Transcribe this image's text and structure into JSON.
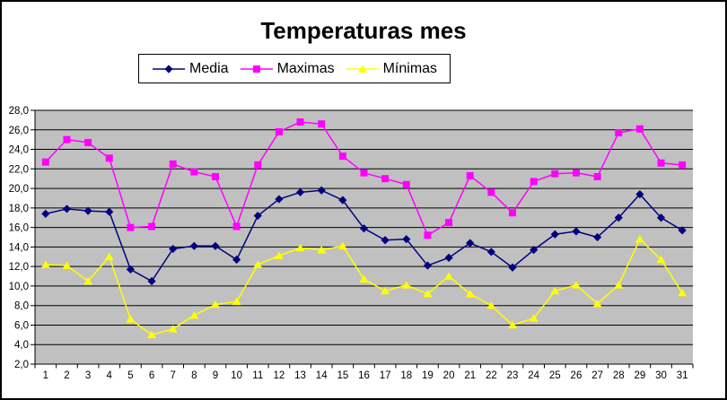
{
  "chart": {
    "title": "Temperaturas mes",
    "colors": {
      "media": "#000080",
      "maximas": "#FF00FF",
      "minimas": "#FFFF00",
      "plot_background": "#C0C0C0",
      "gridlines": "#000000",
      "chart_background": "#FFFFFF",
      "border": "#000000",
      "text": "#000000"
    }
  },
  "chart_data": {
    "type": "line",
    "title": "Temperaturas mes",
    "x": [
      1,
      2,
      3,
      4,
      5,
      6,
      7,
      8,
      9,
      10,
      11,
      12,
      13,
      14,
      15,
      16,
      17,
      18,
      19,
      20,
      21,
      22,
      23,
      24,
      25,
      26,
      27,
      28,
      29,
      30,
      31
    ],
    "series": [
      {
        "name": "Media",
        "color": "#000080",
        "marker": "diamond",
        "values": [
          17.4,
          17.9,
          17.7,
          17.6,
          11.7,
          10.5,
          13.8,
          14.1,
          14.1,
          12.7,
          17.2,
          18.9,
          19.6,
          19.8,
          18.8,
          15.9,
          14.7,
          14.8,
          12.1,
          12.9,
          14.4,
          13.5,
          11.9,
          13.7,
          15.3,
          15.6,
          15.0,
          17.0,
          19.4,
          17.0,
          15.7
        ]
      },
      {
        "name": "Maximas",
        "color": "#FF00FF",
        "marker": "square",
        "values": [
          22.7,
          25.0,
          24.7,
          23.1,
          16.0,
          16.1,
          22.5,
          21.7,
          21.2,
          16.1,
          22.4,
          25.8,
          26.8,
          26.6,
          23.3,
          21.6,
          21.0,
          20.4,
          15.2,
          16.5,
          21.3,
          19.6,
          17.5,
          20.7,
          21.5,
          21.6,
          21.2,
          25.7,
          26.1,
          22.6,
          22.4
        ]
      },
      {
        "name": "Mínimas",
        "color": "#FFFF00",
        "marker": "triangle",
        "values": [
          12.2,
          12.1,
          10.5,
          13.0,
          6.6,
          5.0,
          5.6,
          7.0,
          8.1,
          8.4,
          12.2,
          13.1,
          13.9,
          13.7,
          14.1,
          10.7,
          9.5,
          10.1,
          9.2,
          11.0,
          9.2,
          8.0,
          6.0,
          6.7,
          9.5,
          10.1,
          8.2,
          10.1,
          14.8,
          12.7,
          9.3
        ]
      }
    ],
    "ylim": [
      2,
      28
    ],
    "y_tick_step": 2,
    "y_tick_labels": [
      "28,0",
      "26,0",
      "24,0",
      "22,0",
      "20,0",
      "18,0",
      "16,0",
      "14,0",
      "12,0",
      "10,0",
      "8,0",
      "6,0",
      "4,0",
      "2,0"
    ],
    "grid": true,
    "legend_position": "top",
    "plot_background": "#C0C0C0"
  }
}
